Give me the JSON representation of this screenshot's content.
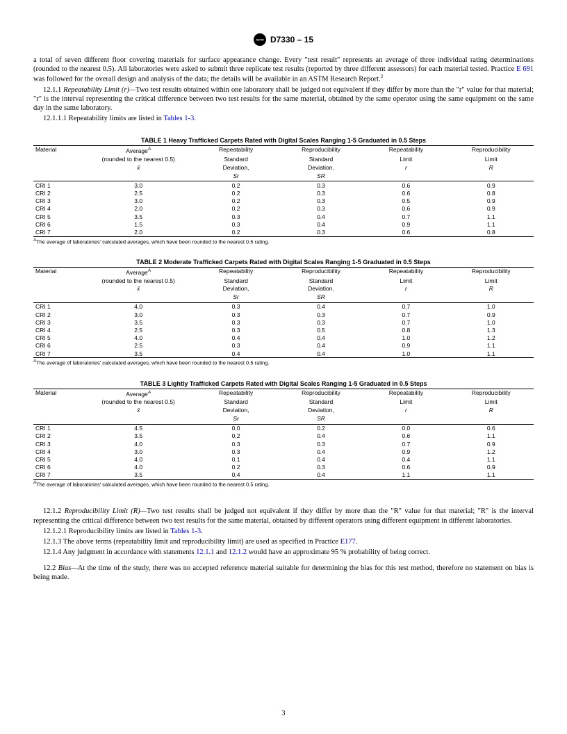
{
  "header": {
    "designation": "D7330 – 15"
  },
  "intro": {
    "p1a": "a total of seven different floor covering materials for surface appearance change. Every \"test result\" represents an average of three individual rating determinations (rounded to the nearest 0.5). All laboratories were asked to submit three replicate test results (reported by three different assessors) for each material tested. Practice ",
    "link1": "E 691",
    "p1b": " was followed for the overall design and analysis of the data; the details will be available in an ASTM Research Report.",
    "sup3": "3"
  },
  "sec1211": {
    "num": "12.1.1 ",
    "title": "Repeatability Limit (r)—",
    "body": "Two test results obtained within one laboratory shall be judged not equivalent if they differ by more than the \"r\" value for that material; \"r\" is the interval representing the critical difference between two test results for the same material, obtained by the same operator using the same equipment on the same day in the same laboratory."
  },
  "sec12111": {
    "num": "12.1.1.1 ",
    "body": "Repeatability limits are listed in ",
    "link": "Tables 1-3",
    "end": "."
  },
  "columns": {
    "c1": "Material",
    "c2a": "Average",
    "c2sup": "A",
    "c2b": "(rounded to the nearest 0.5)",
    "c2c": "x̄",
    "c3a": "Repeatability",
    "c3b": "Standard",
    "c3c": "Deviation,",
    "c3d": "Sr",
    "c4a": "Reproducibility",
    "c4b": "Standard",
    "c4c": "Deviation,",
    "c4d": "SR",
    "c5a": "Repeatability",
    "c5b": "Limit",
    "c5c": "r",
    "c6a": "Reproducibility",
    "c6b": "Limit",
    "c6c": "R"
  },
  "tables": [
    {
      "title": "TABLE 1 Heavy Trafficked Carpets Rated with Digital Scales Ranging 1-5 Graduated in 0.5 Steps",
      "rows": [
        [
          "CRI 1",
          "3.0",
          "0.2",
          "0.3",
          "0.6",
          "0.9"
        ],
        [
          "CRI 2",
          "2.5",
          "0.2",
          "0.3",
          "0.6",
          "0.8"
        ],
        [
          "CRI 3",
          "3.0",
          "0.2",
          "0.3",
          "0.5",
          "0.9"
        ],
        [
          "CRI 4",
          "2.0",
          "0.2",
          "0.3",
          "0.6",
          "0.9"
        ],
        [
          "CRI 5",
          "3.5",
          "0.3",
          "0.4",
          "0.7",
          "1.1"
        ],
        [
          "CRI 6",
          "1.5",
          "0.3",
          "0.4",
          "0.9",
          "1.1"
        ],
        [
          "CRI 7",
          "2.0",
          "0.2",
          "0.3",
          "0.6",
          "0.8"
        ]
      ]
    },
    {
      "title": "TABLE 2 Moderate Trafficked Carpets Rated with Digital Scales Ranging 1-5 Graduated in 0.5 Steps",
      "rows": [
        [
          "CRI 1",
          "4.0",
          "0.3",
          "0.4",
          "0.7",
          "1.0"
        ],
        [
          "CRI 2",
          "3.0",
          "0.3",
          "0.3",
          "0.7",
          "0.9"
        ],
        [
          "CRI 3",
          "3.5",
          "0.3",
          "0.3",
          "0.7",
          "1.0"
        ],
        [
          "CRI 4",
          "2.5",
          "0.3",
          "0.5",
          "0.8",
          "1.3"
        ],
        [
          "CRI 5",
          "4.0",
          "0.4",
          "0.4",
          "1.0",
          "1.2"
        ],
        [
          "CRI 6",
          "2.5",
          "0.3",
          "0.4",
          "0.9",
          "1.1"
        ],
        [
          "CRI 7",
          "3.5",
          "0.4",
          "0.4",
          "1.0",
          "1.1"
        ]
      ]
    },
    {
      "title": "TABLE 3 Lightly Trafficked Carpets Rated with Digital Scales Ranging 1-5 Graduated in 0.5 Steps",
      "rows": [
        [
          "CRI 1",
          "4.5",
          "0.0",
          "0.2",
          "0.0",
          "0.6"
        ],
        [
          "CRI 2",
          "3.5",
          "0.2",
          "0.4",
          "0.6",
          "1.1"
        ],
        [
          "CRI 3",
          "4.0",
          "0.3",
          "0.3",
          "0.7",
          "0.9"
        ],
        [
          "CRI 4",
          "3.0",
          "0.3",
          "0.4",
          "0.9",
          "1.2"
        ],
        [
          "CRI 5",
          "4.0",
          "0.1",
          "0.4",
          "0.4",
          "1.1"
        ],
        [
          "CRI 6",
          "4.0",
          "0.2",
          "0.3",
          "0.6",
          "0.9"
        ],
        [
          "CRI 7",
          "3.5",
          "0.4",
          "0.4",
          "1.1",
          "1.1"
        ]
      ]
    }
  ],
  "footnote": {
    "sup": "A",
    "text": "The average of laboratories' calculated averages, which have been rounded to the nearest 0.5 rating."
  },
  "sec1212": {
    "num": "12.1.2 ",
    "title": "Reproducibility Limit (R)—",
    "body": "Two test results shall be judged not equivalent if they differ by more than the \"R\" value for that material; \"R\" is the interval representing the critical difference between two test results for the same material, obtained by different operators using different equipment in different laboratories."
  },
  "sec12121": {
    "num": "12.1.2.1 ",
    "body": "Reproducibility limits are listed in ",
    "link": "Tables 1-3",
    "end": "."
  },
  "sec1213": {
    "num": "12.1.3 ",
    "body": "The above terms (repeatability limit and reproducibility limit) are used as specified in Practice ",
    "link": "E177",
    "end": "."
  },
  "sec1214": {
    "num": "12.1.4 ",
    "body1": "Any judgment in accordance with statements ",
    "link1": "12.1.1",
    "and": " and ",
    "link2": "12.1.2",
    "body2": " would have an approximate 95 % probability of being correct."
  },
  "sec122": {
    "num": "12.2 ",
    "title": "Bias—",
    "body": "At the time of the study, there was no accepted reference material suitable for determining the bias for this test method, therefore no statement on bias is being made."
  },
  "page": "3"
}
